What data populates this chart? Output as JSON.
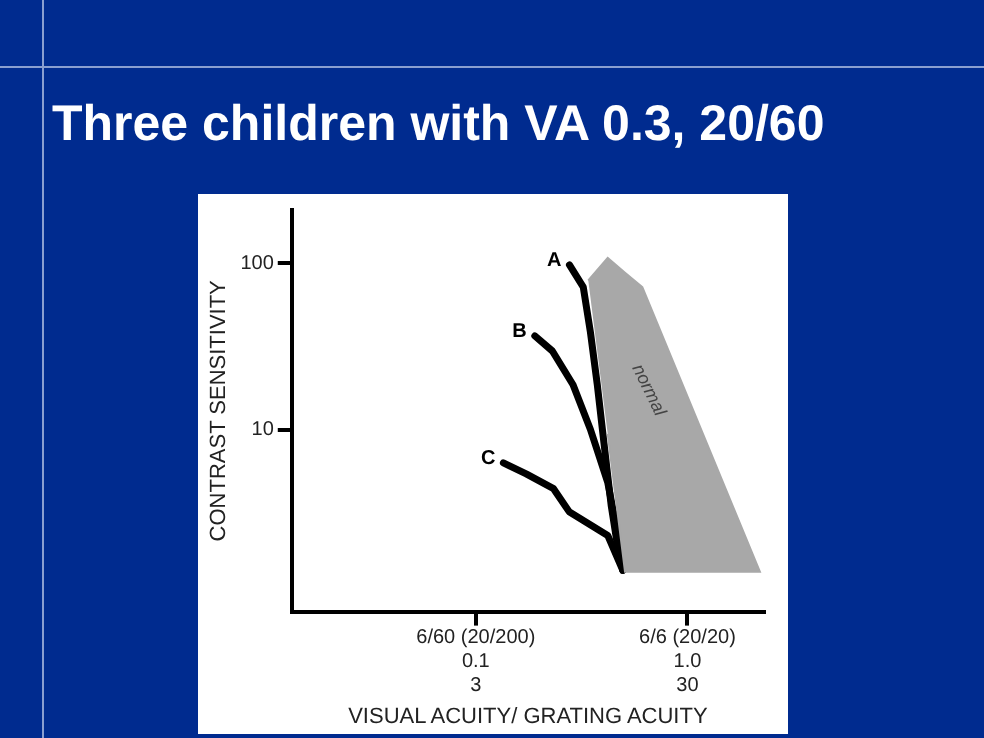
{
  "chart_data": {
    "type": "line",
    "title": "Three children with VA 0.3, 20/60",
    "xlabel": "VISUAL ACUITY/ GRATING ACUITY",
    "ylabel": "CONTRAST SENSITIVITY",
    "log": "xy",
    "xlim": [
      0.0135,
      2.3
    ],
    "ylim": [
      0.8,
      210
    ],
    "annotations": [
      "6/60 (20/200)",
      "6/6 (20/20)",
      "3",
      "30"
    ],
    "xticks": [
      0.1,
      {
        "value": 1,
        "label": "1.0"
      }
    ],
    "yticks": [
      10,
      100
    ],
    "grid": false,
    "legend": false,
    "marker": "none",
    "line_style": "solid",
    "series": [
      {
        "name": "normal",
        "type": "area",
        "color": "#a8a8a8",
        "x": [
          0.34,
          0.42,
          0.507,
          0.612,
          2.2,
          0.507,
          0.42
        ],
        "values": [
          79,
          108,
          88,
          72,
          1.39,
          1.39,
          9.4
        ]
      },
      {
        "name": "A",
        "color": "#000000",
        "x": [
          0.277,
          0.322,
          0.348,
          0.375,
          0.404,
          0.436,
          0.47,
          0.495
        ],
        "values": [
          98,
          72,
          38.5,
          18.6,
          8.1,
          3.5,
          1.9,
          1.42
        ]
      },
      {
        "name": "B",
        "color": "#000000",
        "x": [
          0.19,
          0.23,
          0.288,
          0.348,
          0.42,
          0.47,
          0.495
        ],
        "values": [
          36.6,
          29.7,
          18.6,
          10,
          4.8,
          2.3,
          1.42
        ]
      },
      {
        "name": "C",
        "color": "#000000",
        "x": [
          0.135,
          0.173,
          0.233,
          0.276,
          0.42,
          0.495
        ],
        "values": [
          6.3,
          5.4,
          4.4,
          3.2,
          2.3,
          1.42
        ]
      }
    ]
  }
}
